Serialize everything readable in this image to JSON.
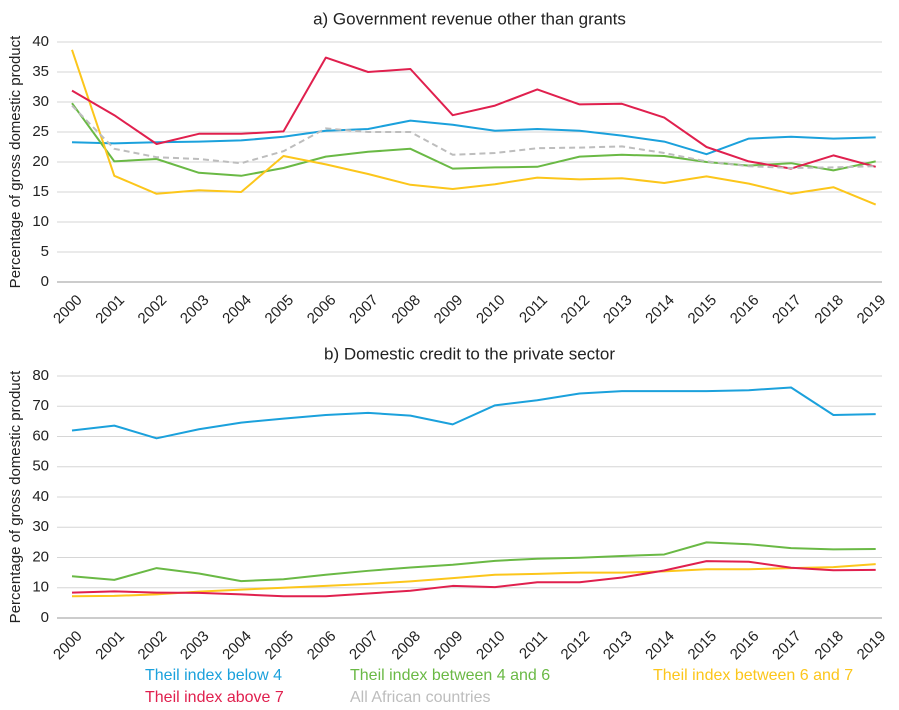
{
  "chart_data": [
    {
      "type": "line",
      "title": "a) Government revenue other than grants",
      "y_label": "Percentage of gross domestic product",
      "categories": [
        "2000",
        "2001",
        "2002",
        "2003",
        "2004",
        "2005",
        "2006",
        "2007",
        "2008",
        "2009",
        "2010",
        "2011",
        "2012",
        "2013",
        "2014",
        "2015",
        "2016",
        "2017",
        "2018",
        "2019"
      ],
      "ylim": [
        0,
        40
      ],
      "yticks": [
        0,
        5,
        10,
        15,
        20,
        25,
        30,
        35,
        40
      ],
      "grid": true,
      "series": [
        {
          "name": "Theil index below 4",
          "color": "#1ba1dc",
          "values": [
            23.3,
            23.1,
            23.3,
            23.4,
            23.6,
            24.2,
            25.2,
            25.5,
            26.9,
            26.2,
            25.2,
            25.5,
            25.2,
            24.4,
            23.4,
            21.3,
            23.9,
            24.2,
            23.9,
            24.1
          ]
        },
        {
          "name": "Theil index between 4 and 6",
          "color": "#6ab945",
          "values": [
            29.8,
            20.1,
            20.5,
            18.2,
            17.7,
            19.0,
            20.9,
            21.7,
            22.2,
            18.9,
            19.1,
            19.2,
            20.9,
            21.2,
            21.0,
            20.0,
            19.4,
            19.8,
            18.6,
            20.1
          ]
        },
        {
          "name": "Theil index between 6 and 7",
          "color": "#fcc61b",
          "values": [
            38.7,
            17.7,
            14.7,
            15.3,
            15.0,
            21.0,
            19.6,
            18.0,
            16.2,
            15.5,
            16.3,
            17.4,
            17.1,
            17.3,
            16.5,
            17.6,
            16.4,
            14.7,
            15.8,
            12.9
          ]
        },
        {
          "name": "Theil index above 7",
          "color": "#e0204e",
          "values": [
            31.9,
            27.8,
            23.0,
            24.7,
            24.7,
            25.1,
            37.4,
            35.0,
            35.5,
            27.8,
            29.4,
            32.1,
            29.6,
            29.7,
            27.4,
            22.5,
            20.1,
            18.9,
            21.1,
            19.2
          ]
        },
        {
          "name": "All African countries",
          "color": "#bdbdbd",
          "dashed": true,
          "values": [
            29.4,
            22.2,
            20.8,
            20.5,
            19.8,
            21.8,
            25.6,
            25.0,
            25.0,
            21.2,
            21.5,
            22.3,
            22.4,
            22.6,
            21.5,
            20.1,
            19.3,
            19.0,
            19.1,
            19.3
          ]
        }
      ]
    },
    {
      "type": "line",
      "title": "b) Domestic credit to the private sector",
      "y_label": "Percentage of gross domestic product",
      "categories": [
        "2000",
        "2001",
        "2002",
        "2003",
        "2004",
        "2005",
        "2006",
        "2007",
        "2008",
        "2009",
        "2010",
        "2011",
        "2012",
        "2013",
        "2014",
        "2015",
        "2016",
        "2017",
        "2018",
        "2019"
      ],
      "ylim": [
        0,
        80
      ],
      "yticks": [
        0,
        10,
        20,
        30,
        40,
        50,
        60,
        70,
        80
      ],
      "grid": true,
      "series": [
        {
          "name": "Theil index below 4",
          "color": "#1ba1dc",
          "values": [
            62.0,
            63.6,
            59.4,
            62.4,
            64.6,
            65.9,
            67.1,
            67.8,
            66.9,
            64.0,
            70.3,
            72.0,
            74.2,
            75.0,
            75.0,
            75.0,
            75.3,
            76.2,
            67.1,
            67.4
          ]
        },
        {
          "name": "Theil index between 4 and 6",
          "color": "#6ab945",
          "values": [
            13.8,
            12.6,
            16.5,
            14.7,
            12.2,
            12.8,
            14.3,
            15.6,
            16.7,
            17.6,
            18.9,
            19.6,
            19.9,
            20.5,
            21.0,
            25.0,
            24.4,
            23.1,
            22.7,
            22.8
          ]
        },
        {
          "name": "Theil index between 6 and 7",
          "color": "#fcc61b",
          "values": [
            7.2,
            7.3,
            7.8,
            8.7,
            9.4,
            10.0,
            10.6,
            11.3,
            12.1,
            13.2,
            14.3,
            14.6,
            15.0,
            15.0,
            15.4,
            16.1,
            16.1,
            16.5,
            16.8,
            17.8
          ]
        },
        {
          "name": "Theil index above 7",
          "color": "#e0204e",
          "values": [
            8.4,
            8.8,
            8.4,
            8.3,
            7.8,
            7.2,
            7.2,
            8.1,
            9.0,
            10.6,
            10.2,
            11.8,
            11.8,
            13.4,
            15.7,
            18.8,
            18.6,
            16.6,
            15.8,
            15.9
          ]
        }
      ]
    }
  ]
}
